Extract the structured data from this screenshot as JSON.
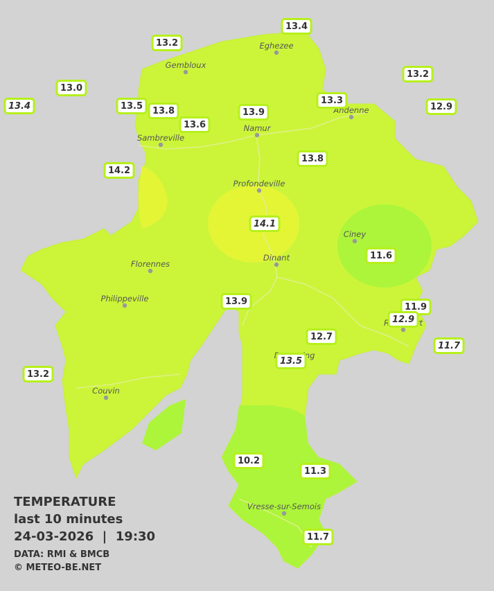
{
  "towns": [
    "Eghezee",
    "Gembloux",
    "Andenne",
    "Namur",
    "Sambreville",
    "Profondeville",
    "Ciney",
    "Dinant",
    "Florennes",
    "Philippeville",
    "Rochefort",
    "Beauraing",
    "Couvin",
    "Vresse-sur-Semois"
  ],
  "stations": [
    "13.4",
    "13.2",
    "13.2",
    "13.0",
    "13.4",
    "13.5",
    "13.8",
    "13.9",
    "13.3",
    "12.9",
    "13.6",
    "13.8",
    "14.2",
    "14.1",
    "11.6",
    "13.9",
    "11.9",
    "12.9",
    "12.7",
    "11.7",
    "13.5",
    "13.2",
    "10.2",
    "11.3",
    "11.7"
  ],
  "legend": {
    "title": "TEMPERATURE",
    "subtitle": "last 10 minutes",
    "datetime": "24-03-2026  |  19:30",
    "source": "DATA: RMI & BMCB",
    "credit": "© METEO-BE.NET"
  }
}
